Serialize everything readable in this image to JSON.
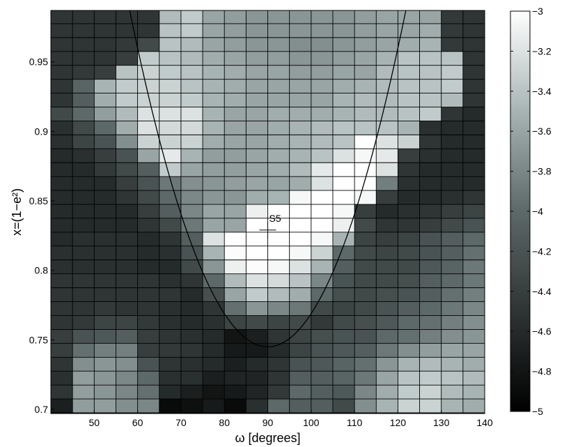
{
  "chart_data": {
    "type": "heatmap",
    "xlabel": "ω [degrees]",
    "ylabel": "x=(1−e²)",
    "xlim": [
      40,
      140
    ],
    "ylim": [
      0.697,
      0.987
    ],
    "x_ticks": [
      50,
      60,
      70,
      80,
      90,
      100,
      110,
      120,
      130,
      140
    ],
    "y_ticks": [
      0.7,
      0.75,
      0.8,
      0.85,
      0.9,
      0.95
    ],
    "x_tick_labels": [
      "50",
      "60",
      "70",
      "80",
      "90",
      "100",
      "110",
      "120",
      "130",
      "140"
    ],
    "y_tick_labels": [
      "0.7",
      "0.75",
      "0.8",
      "0.85",
      "0.9",
      "0.95"
    ],
    "colorbar": {
      "range": [
        -5,
        -3
      ],
      "ticks": [
        -5,
        -4.8,
        -4.6,
        -4.4,
        -4.2,
        -4,
        -3.8,
        -3.6,
        -3.4,
        -3.2,
        -3
      ],
      "tick_labels": [
        "−5",
        "−4.8",
        "−4.6",
        "−4.4",
        "−4.2",
        "−4",
        "−3.8",
        "−3.6",
        "−3.4",
        "−3.2",
        "−3"
      ]
    },
    "x_centers": [
      42.5,
      47.5,
      52.5,
      57.5,
      62.5,
      67.5,
      72.5,
      77.5,
      82.5,
      87.5,
      92.5,
      97.5,
      102.5,
      107.5,
      112.5,
      117.5,
      122.5,
      127.5,
      132.5,
      137.5
    ],
    "y_centers": [
      0.7025,
      0.7125,
      0.7225,
      0.7325,
      0.7425,
      0.7525,
      0.7625,
      0.7725,
      0.7825,
      0.7925,
      0.8025,
      0.8125,
      0.8225,
      0.8325,
      0.8425,
      0.8525,
      0.8625,
      0.8725,
      0.8825,
      0.8925,
      0.9025,
      0.9125,
      0.9225,
      0.9325,
      0.9425,
      0.9525,
      0.9625,
      0.9725,
      0.9825
    ],
    "z": [
      [
        -4.7,
        -3.65,
        -3.65,
        -3.75,
        -3.8,
        -4.9,
        -4.85,
        -4.75,
        -4.9,
        -4.55,
        -4.0,
        -4.1,
        -4.1,
        -4.3,
        -3.75,
        -3.5,
        -3.3,
        -3.3,
        -3.5,
        -3.55
      ],
      [
        -4.5,
        -3.65,
        -3.7,
        -3.8,
        -3.95,
        -4.6,
        -4.7,
        -4.8,
        -4.75,
        -4.65,
        -4.45,
        -4.0,
        -4.1,
        -4.15,
        -3.8,
        -3.55,
        -3.35,
        -3.3,
        -3.45,
        -3.5
      ],
      [
        -4.55,
        -3.65,
        -3.7,
        -3.8,
        -4.0,
        -4.55,
        -4.55,
        -4.7,
        -4.65,
        -4.65,
        -4.5,
        -4.1,
        -4.1,
        -4.05,
        -3.9,
        -3.6,
        -3.4,
        -3.35,
        -3.4,
        -3.45
      ],
      [
        -4.5,
        -3.75,
        -3.7,
        -3.75,
        -4.2,
        -4.5,
        -4.55,
        -4.6,
        -4.7,
        -4.6,
        -4.5,
        -4.2,
        -4.15,
        -4.05,
        -3.95,
        -3.7,
        -3.5,
        -3.45,
        -3.5,
        -3.55
      ],
      [
        -4.4,
        -3.95,
        -3.85,
        -3.85,
        -4.4,
        -4.45,
        -4.5,
        -4.6,
        -4.75,
        -4.75,
        -4.6,
        -4.35,
        -4.2,
        -4.15,
        -4.1,
        -3.9,
        -3.75,
        -3.65,
        -3.6,
        -3.6
      ],
      [
        -4.4,
        -4.2,
        -4.15,
        -4.1,
        -4.4,
        -4.5,
        -4.55,
        -4.6,
        -4.8,
        -4.7,
        -4.5,
        -4.35,
        -4.25,
        -4.2,
        -4.2,
        -4.0,
        -3.95,
        -3.85,
        -3.75,
        -3.7
      ],
      [
        -4.5,
        -4.45,
        -4.35,
        -4.35,
        -4.45,
        -4.55,
        -4.6,
        -4.55,
        -4.35,
        -4.3,
        -4.35,
        -4.3,
        -4.45,
        -4.3,
        -4.25,
        -4.15,
        -4.0,
        -3.95,
        -3.85,
        -3.75
      ],
      [
        -4.5,
        -4.5,
        -4.45,
        -4.5,
        -4.5,
        -4.55,
        -4.6,
        -4.5,
        -3.95,
        -3.7,
        -3.8,
        -3.9,
        -4.3,
        -4.35,
        -4.3,
        -4.2,
        -4.1,
        -4.0,
        -3.9,
        -3.8
      ],
      [
        -4.5,
        -4.5,
        -4.5,
        -4.5,
        -4.5,
        -4.5,
        -4.6,
        -4.25,
        -3.6,
        -3.35,
        -3.45,
        -3.55,
        -4.0,
        -4.25,
        -4.3,
        -4.25,
        -4.2,
        -4.1,
        -3.95,
        -3.85
      ],
      [
        -4.5,
        -4.5,
        -4.5,
        -4.5,
        -4.5,
        -4.55,
        -4.5,
        -4.0,
        -3.45,
        -3.2,
        -3.25,
        -3.4,
        -3.8,
        -4.2,
        -4.3,
        -4.3,
        -4.25,
        -4.1,
        -4.0,
        -3.9
      ],
      [
        -4.55,
        -4.55,
        -4.55,
        -4.55,
        -4.6,
        -4.6,
        -4.3,
        -3.7,
        -3.1,
        -3.02,
        -3.05,
        -3.2,
        -3.5,
        -4.1,
        -4.3,
        -4.3,
        -4.3,
        -4.15,
        -4.05,
        -3.9
      ],
      [
        -4.55,
        -4.55,
        -4.55,
        -4.55,
        -4.6,
        -4.55,
        -4.2,
        -3.5,
        -3.02,
        -3.0,
        -3.0,
        -3.05,
        -3.3,
        -4.0,
        -4.3,
        -4.35,
        -4.3,
        -4.2,
        -4.1,
        -3.95
      ],
      [
        -4.6,
        -4.55,
        -4.55,
        -4.55,
        -4.6,
        -4.5,
        -4.1,
        -3.2,
        -3.0,
        -3.0,
        -3.0,
        -3.0,
        -3.05,
        -3.5,
        -4.35,
        -4.4,
        -4.35,
        -4.2,
        -4.1,
        -4.0
      ],
      [
        -4.6,
        -4.6,
        -4.6,
        -4.6,
        -4.5,
        -4.3,
        -3.9,
        -3.6,
        -3.6,
        -3.0,
        -3.0,
        -3.0,
        -3.0,
        -3.1,
        -4.3,
        -4.5,
        -4.5,
        -4.4,
        -4.3,
        -4.2
      ],
      [
        -4.6,
        -4.6,
        -4.6,
        -4.6,
        -4.4,
        -4.1,
        -3.8,
        -3.6,
        -3.6,
        -3.1,
        -3.0,
        -3.0,
        -3.0,
        -3.05,
        -4.4,
        -4.6,
        -4.55,
        -4.5,
        -4.4,
        -4.35
      ],
      [
        -4.6,
        -4.6,
        -4.6,
        -4.5,
        -4.3,
        -4.0,
        -3.8,
        -3.7,
        -3.7,
        -3.55,
        -3.5,
        -3.05,
        -3.0,
        -3.0,
        -3.05,
        -4.4,
        -4.6,
        -4.6,
        -4.55,
        -4.5
      ],
      [
        -4.6,
        -4.6,
        -4.6,
        -4.4,
        -4.2,
        -3.9,
        -3.75,
        -3.7,
        -3.65,
        -3.6,
        -3.6,
        -3.55,
        -3.2,
        -3.0,
        -3.0,
        -3.85,
        -4.55,
        -4.6,
        -4.6,
        -4.6
      ],
      [
        -4.6,
        -4.6,
        -4.45,
        -4.3,
        -4.1,
        -3.35,
        -3.6,
        -3.65,
        -3.65,
        -3.6,
        -3.55,
        -3.45,
        -3.15,
        -3.0,
        -3.0,
        -3.2,
        -4.5,
        -4.6,
        -4.6,
        -4.6
      ],
      [
        -4.6,
        -4.55,
        -4.4,
        -4.2,
        -3.6,
        -3.15,
        -3.5,
        -3.65,
        -3.65,
        -3.6,
        -3.55,
        -3.5,
        -3.4,
        -3.2,
        -3.05,
        -3.15,
        -4.4,
        -4.55,
        -4.6,
        -4.6
      ],
      [
        -4.55,
        -4.35,
        -4.2,
        -3.75,
        -3.3,
        -3.3,
        -3.3,
        -3.55,
        -3.6,
        -3.6,
        -3.55,
        -3.5,
        -3.45,
        -3.4,
        -3.0,
        -3.2,
        -3.3,
        -4.5,
        -4.6,
        -4.6
      ],
      [
        -4.55,
        -4.3,
        -4.0,
        -3.55,
        -3.2,
        -3.25,
        -3.25,
        -3.5,
        -3.6,
        -3.6,
        -3.55,
        -3.5,
        -3.45,
        -3.4,
        -3.4,
        -3.4,
        -3.5,
        -4.55,
        -4.6,
        -4.6
      ],
      [
        -4.3,
        -4.0,
        -3.65,
        -3.45,
        -3.2,
        -3.2,
        -3.2,
        -3.5,
        -3.6,
        -3.6,
        -3.55,
        -3.55,
        -3.55,
        -3.5,
        -3.45,
        -3.45,
        -3.4,
        -3.35,
        -4.5,
        -4.6
      ],
      [
        -4.5,
        -4.1,
        -3.55,
        -3.35,
        -3.3,
        -3.3,
        -3.35,
        -3.5,
        -3.55,
        -3.6,
        -3.6,
        -3.6,
        -3.6,
        -3.5,
        -3.45,
        -3.45,
        -3.4,
        -3.4,
        -3.45,
        -4.5
      ],
      [
        -4.5,
        -4.05,
        -3.5,
        -3.35,
        -3.3,
        -3.3,
        -3.4,
        -3.5,
        -3.55,
        -3.6,
        -3.6,
        -3.6,
        -3.6,
        -3.55,
        -3.5,
        -3.45,
        -3.4,
        -3.4,
        -3.35,
        -4.5
      ],
      [
        -4.5,
        -4.45,
        -4.4,
        -3.4,
        -3.3,
        -3.35,
        -3.4,
        -3.5,
        -3.55,
        -3.6,
        -3.6,
        -3.65,
        -3.65,
        -3.6,
        -3.6,
        -3.45,
        -3.4,
        -3.4,
        -3.35,
        -4.5
      ],
      [
        -4.5,
        -4.5,
        -4.5,
        -4.4,
        -3.35,
        -3.4,
        -3.45,
        -3.55,
        -3.6,
        -3.65,
        -3.65,
        -3.7,
        -3.7,
        -3.65,
        -3.6,
        -3.5,
        -3.4,
        -3.4,
        -3.4,
        -4.5
      ],
      [
        -4.5,
        -4.5,
        -4.5,
        -4.45,
        -4.3,
        -3.4,
        -3.45,
        -3.6,
        -3.65,
        -3.7,
        -3.7,
        -3.75,
        -3.75,
        -3.7,
        -3.65,
        -3.6,
        -3.55,
        -3.5,
        -4.45,
        -4.5
      ],
      [
        -4.5,
        -4.5,
        -4.5,
        -4.5,
        -4.5,
        -3.4,
        -3.35,
        -3.6,
        -3.65,
        -3.7,
        -3.7,
        -3.7,
        -3.7,
        -3.7,
        -3.65,
        -3.6,
        -3.6,
        -3.55,
        -4.45,
        -4.5
      ],
      [
        -4.5,
        -4.5,
        -4.5,
        -4.5,
        -4.5,
        -3.45,
        -3.35,
        -3.6,
        -3.65,
        -3.7,
        -3.7,
        -3.7,
        -3.7,
        -3.7,
        -3.65,
        -3.6,
        -3.6,
        -3.6,
        -4.45,
        -4.5
      ]
    ],
    "curve": {
      "type": "parabola",
      "vertex_x": 90,
      "vertex_y": 0.745,
      "passes_through": [
        [
          60,
          0.96
        ],
        [
          120,
          0.96
        ]
      ]
    },
    "marker": {
      "x": 90,
      "y": 0.829,
      "label": "S5"
    },
    "grid": true
  }
}
